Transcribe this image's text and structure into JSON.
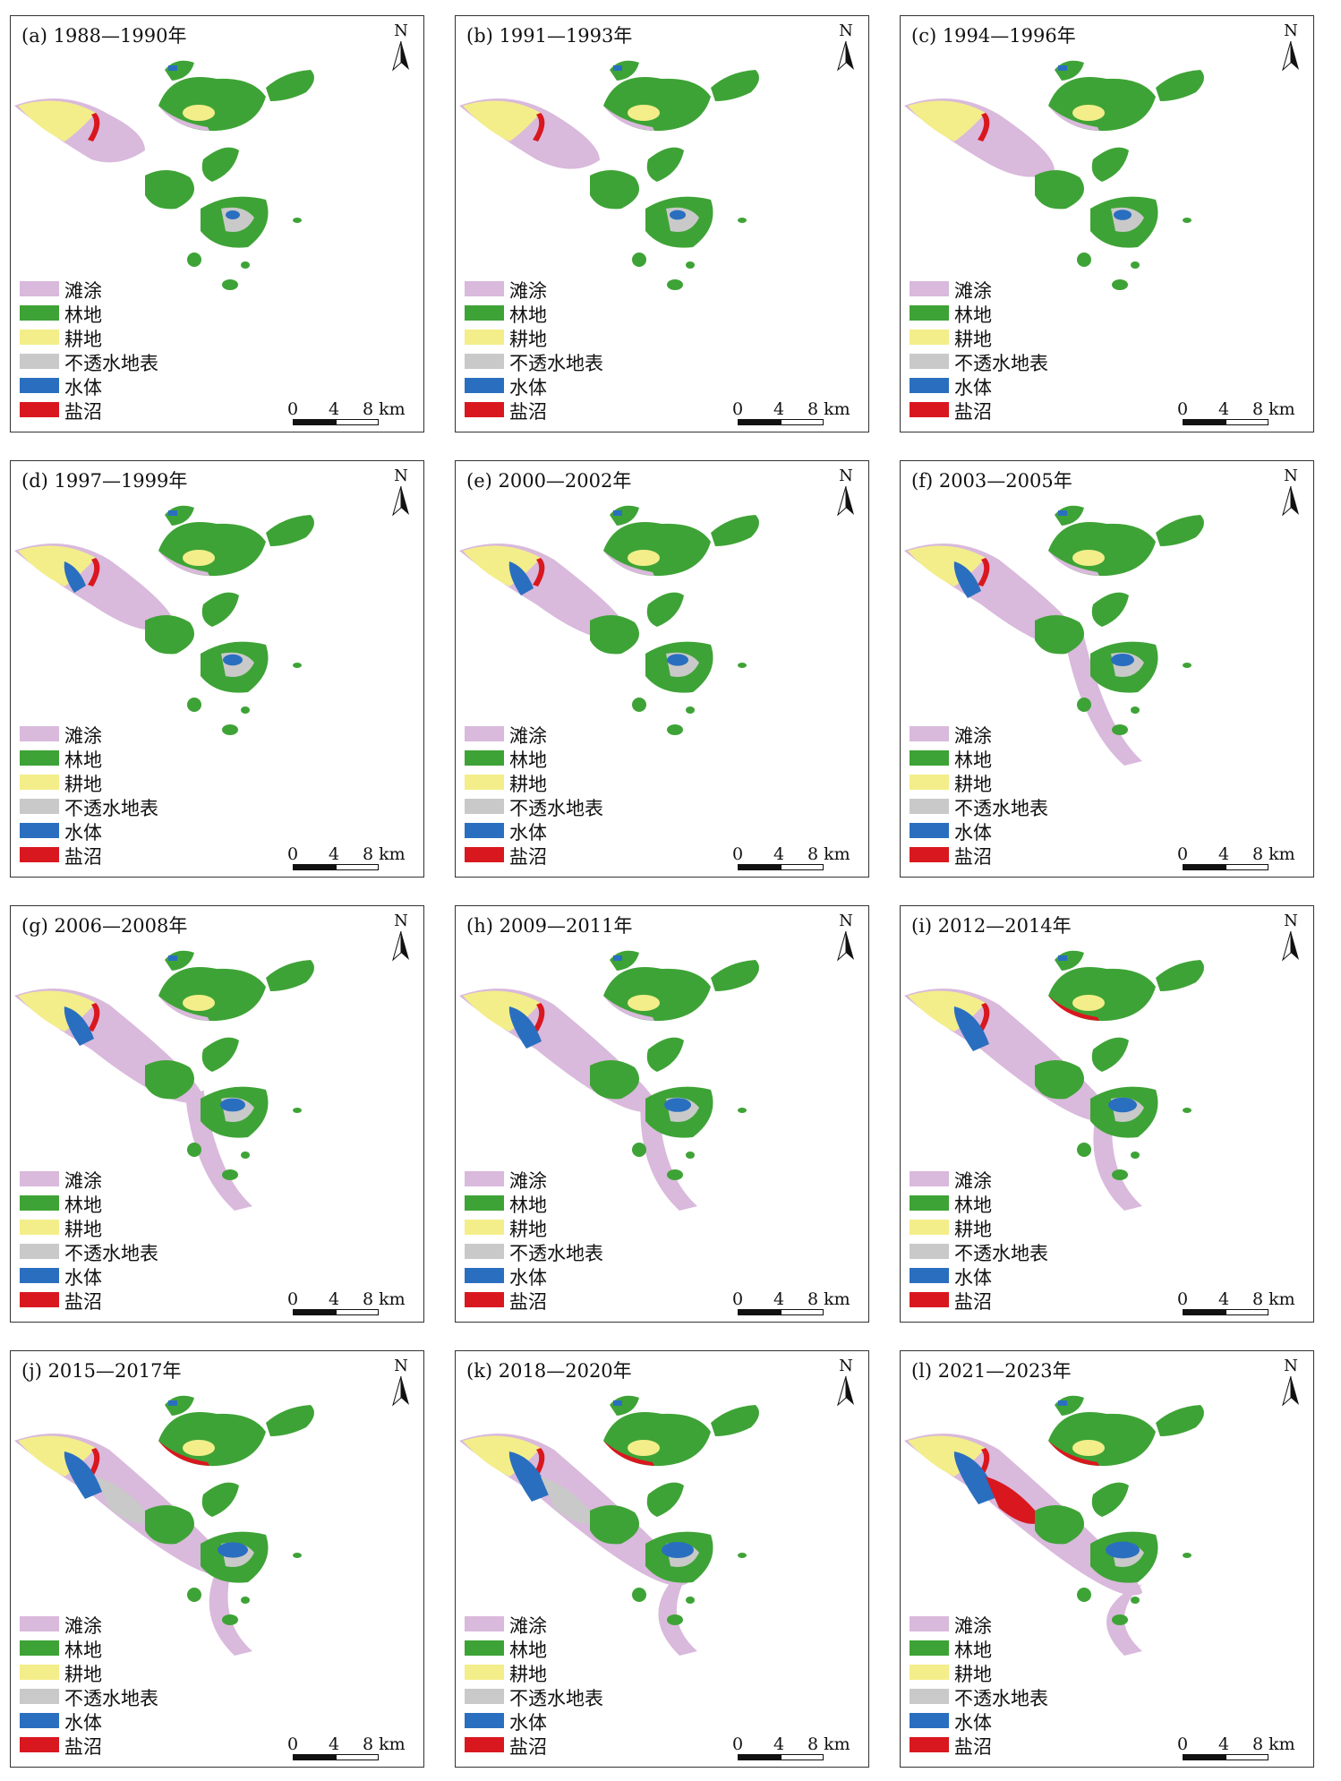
{
  "colors": {
    "tidal_flat": "#d9b9dc",
    "forest": "#3ea336",
    "cropland": "#f3ee8a",
    "impervious": "#c9c9c9",
    "water": "#2a6fbf",
    "salt_marsh": "#d9171f"
  },
  "legend": [
    {
      "label": "滩涂",
      "color": "#d9b9dc"
    },
    {
      "label": "林地",
      "color": "#3ea336"
    },
    {
      "label": "耕地",
      "color": "#f3ee8a"
    },
    {
      "label": "不透水地表",
      "color": "#c9c9c9"
    },
    {
      "label": "水体",
      "color": "#2a6fbf"
    },
    {
      "label": "盐沼",
      "color": "#d9171f"
    }
  ],
  "north_label": "N",
  "scale": {
    "ticks": [
      "0",
      "4",
      "8 km"
    ]
  },
  "panels": [
    {
      "title": "(a) 1988—1990年"
    },
    {
      "title": "(b) 1991—1993年"
    },
    {
      "title": "(c) 1994—1996年"
    },
    {
      "title": "(d) 1997—1999年"
    },
    {
      "title": "(e) 2000—2002年"
    },
    {
      "title": "(f) 2003—2005年"
    },
    {
      "title": "(g) 2006—2008年"
    },
    {
      "title": "(h) 2009—2011年"
    },
    {
      "title": "(i) 2012—2014年"
    },
    {
      "title": "(j) 2015—2017年"
    },
    {
      "title": "(k) 2018—2020年"
    },
    {
      "title": "(l) 2021—2023年"
    }
  ]
}
